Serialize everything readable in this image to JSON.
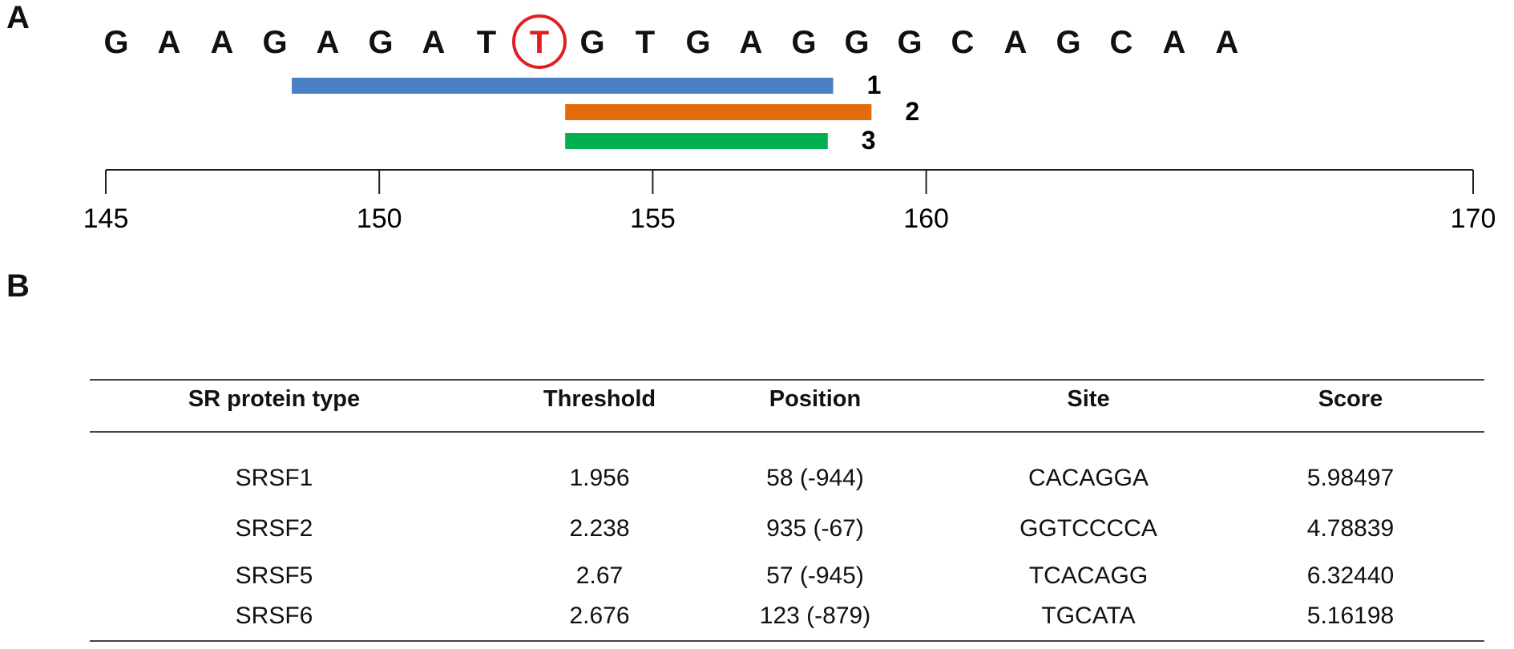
{
  "panel_a": {
    "label": "A",
    "sequence": [
      "G",
      "A",
      "A",
      "G",
      "A",
      "G",
      "A",
      "T",
      "T",
      "G",
      "T",
      "G",
      "A",
      "G",
      "G",
      "G",
      "C",
      "A",
      "G",
      "C",
      "A",
      "A"
    ],
    "highlighted_index": 8,
    "highlight_color": "#e02020",
    "bars": [
      {
        "label": "1",
        "start": 148.4,
        "end": 158.3,
        "color": "#4a7fc1"
      },
      {
        "label": "2",
        "start": 153.4,
        "end": 159.0,
        "color": "#e36c0a"
      },
      {
        "label": "3",
        "start": 153.4,
        "end": 158.2,
        "color": "#00b050"
      }
    ],
    "axis": {
      "min": 145,
      "max": 170,
      "ticks": [
        {
          "value": 145,
          "label": "145"
        },
        {
          "value": 150,
          "label": "150"
        },
        {
          "value": 155,
          "label": "155"
        },
        {
          "value": 160,
          "label": "160"
        },
        {
          "value": 170,
          "label": "170"
        }
      ]
    }
  },
  "panel_b": {
    "label": "B",
    "headers": [
      "SR protein type",
      "Threshold",
      "Position",
      "Site",
      "Score"
    ],
    "rows": [
      [
        "SRSF1",
        "1.956",
        "58 (-944)",
        "CACAGGA",
        "5.98497"
      ],
      [
        "SRSF2",
        "2.238",
        "935 (-67)",
        "GGTCCCCA",
        "4.78839"
      ],
      [
        "SRSF5",
        "2.67",
        "57 (-945)",
        "TCACAGG",
        "6.32440"
      ],
      [
        "SRSF6",
        "2.676",
        "123 (-879)",
        "TGCATA",
        "5.16198"
      ]
    ]
  }
}
